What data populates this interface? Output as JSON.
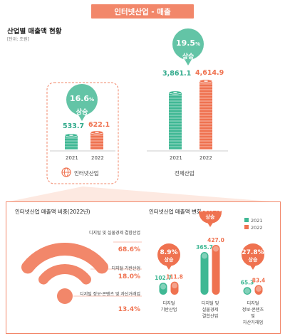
{
  "header": {
    "title": "인터넷산업 - 매출"
  },
  "top_section": {
    "title": "산업별 매출액 현황",
    "unit": "[단위: 조원]"
  },
  "colors": {
    "accent": "#f2876a",
    "teal": "#3fb894",
    "orange": "#ef7250",
    "bubble": "#63c4a6"
  },
  "chart_data": [
    {
      "type": "bar",
      "name_label": "인터넷산업",
      "categories": [
        "2021",
        "2022"
      ],
      "values": [
        533.7,
        622.1
      ],
      "value_labels": [
        "533.7",
        "622.1"
      ],
      "growth": {
        "value": "16.6",
        "unit": "%",
        "label": "상승"
      }
    },
    {
      "type": "bar",
      "name_label": "전체산업",
      "categories": [
        "2021",
        "2022"
      ],
      "values": [
        3861.1,
        4614.9
      ],
      "value_labels": [
        "3,861.1",
        "4,614.9"
      ],
      "growth": {
        "value": "19.5",
        "unit": "%",
        "label": "상승"
      }
    },
    {
      "type": "pie",
      "title": "인터넷산업 매출액 비중(2022년)",
      "slices": [
        {
          "label": "디지털 및 실물경제 결합산업",
          "value": 68.6,
          "value_label": "68.6%"
        },
        {
          "label": "디지털 기반산업",
          "value": 18.0,
          "value_label": "18.0%"
        },
        {
          "label": "디지털 정보·콘텐츠 및 자산거래업",
          "value": 13.4,
          "value_label": "13.4%"
        }
      ]
    },
    {
      "type": "bar",
      "title": "인터넷산업 매출액 변화",
      "legend": [
        "2021",
        "2022"
      ],
      "categories": [
        "디지털 기반산업",
        "디지털 및 실물경제 결합산업",
        "디지털 정보·콘텐츠 및 자산거래업"
      ],
      "series": [
        {
          "name": "2021",
          "values": [
            102.7,
            365.7,
            65.3
          ]
        },
        {
          "name": "2022",
          "values": [
            111.8,
            427.0,
            83.4
          ]
        }
      ],
      "value_labels_2021": [
        "102.7",
        "365.7",
        "65.3"
      ],
      "value_labels_2022": [
        "111.8",
        "427.0",
        "83.4"
      ],
      "growth": [
        {
          "value": "8.9",
          "unit": "%",
          "label": "상승"
        },
        {
          "value": "16.7",
          "unit": "%",
          "label": "상승"
        },
        {
          "value": "27.8",
          "unit": "%",
          "label": "상승"
        }
      ]
    }
  ]
}
